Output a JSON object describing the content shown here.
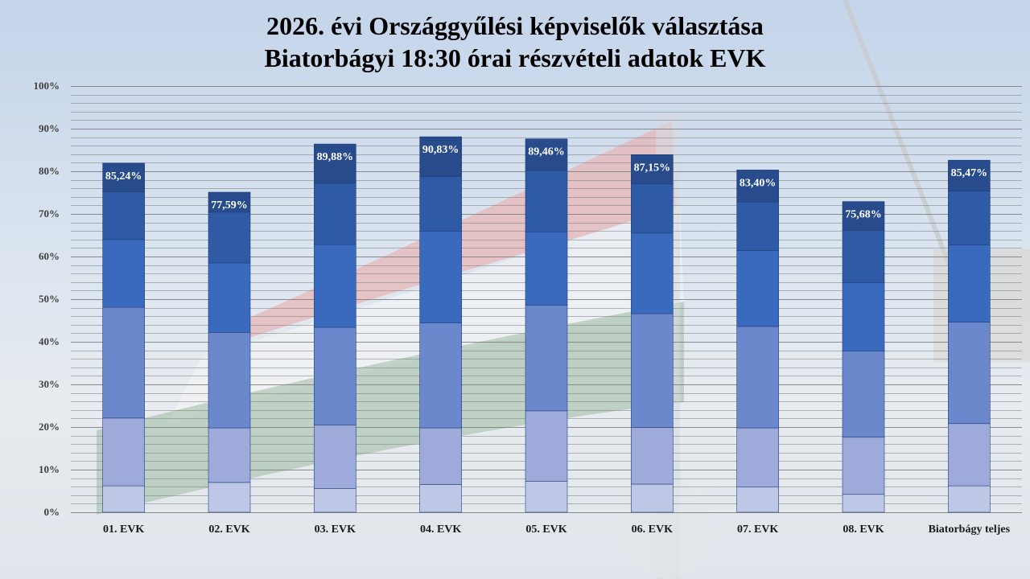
{
  "title": {
    "line1": "2026. évi Országgyűlési képviselők választása",
    "line2": "Biatorbágyi 18:30 órai részvételi adatok EVK"
  },
  "colors": {
    "segments": [
      "#bfc7e6",
      "#9eaada",
      "#6c88cd",
      "#3a6abd",
      "#2f5aa6",
      "#284b8c"
    ],
    "grid": "#7f7f7f",
    "label": "#ffffff"
  },
  "chart_data": {
    "type": "bar",
    "stacked": true,
    "ylim": [
      0,
      100
    ],
    "yticks": [
      "0%",
      "10%",
      "20%",
      "30%",
      "40%",
      "50%",
      "60%",
      "70%",
      "80%",
      "90%",
      "100%"
    ],
    "grid": true,
    "categories": [
      "01. EVK",
      "02. EVK",
      "03. EVK",
      "04. EVK",
      "05. EVK",
      "06. EVK",
      "07. EVK",
      "08. EVK",
      "Biatorbágy teljes"
    ],
    "stack_tops": [
      [
        6.2,
        22.1,
        48.1,
        64.0,
        75.2,
        81.9
      ],
      [
        7.0,
        19.8,
        42.2,
        58.5,
        70.4,
        75.1
      ],
      [
        5.6,
        20.5,
        43.4,
        62.8,
        77.2,
        86.4
      ],
      [
        6.5,
        19.8,
        44.4,
        65.9,
        78.8,
        88.1
      ],
      [
        7.3,
        23.8,
        48.6,
        65.8,
        80.2,
        87.6
      ],
      [
        6.6,
        19.9,
        46.6,
        65.5,
        77.1,
        83.9
      ],
      [
        5.9,
        19.8,
        43.6,
        61.4,
        72.8,
        80.3
      ],
      [
        4.2,
        17.6,
        37.8,
        53.9,
        66.1,
        72.9
      ],
      [
        6.2,
        20.8,
        44.6,
        62.7,
        75.4,
        82.6
      ]
    ],
    "labels": [
      "85,24%",
      "77,59%",
      "89,88%",
      "90,83%",
      "89,46%",
      "87,15%",
      "83,40%",
      "75,68%",
      "85,47%"
    ]
  }
}
